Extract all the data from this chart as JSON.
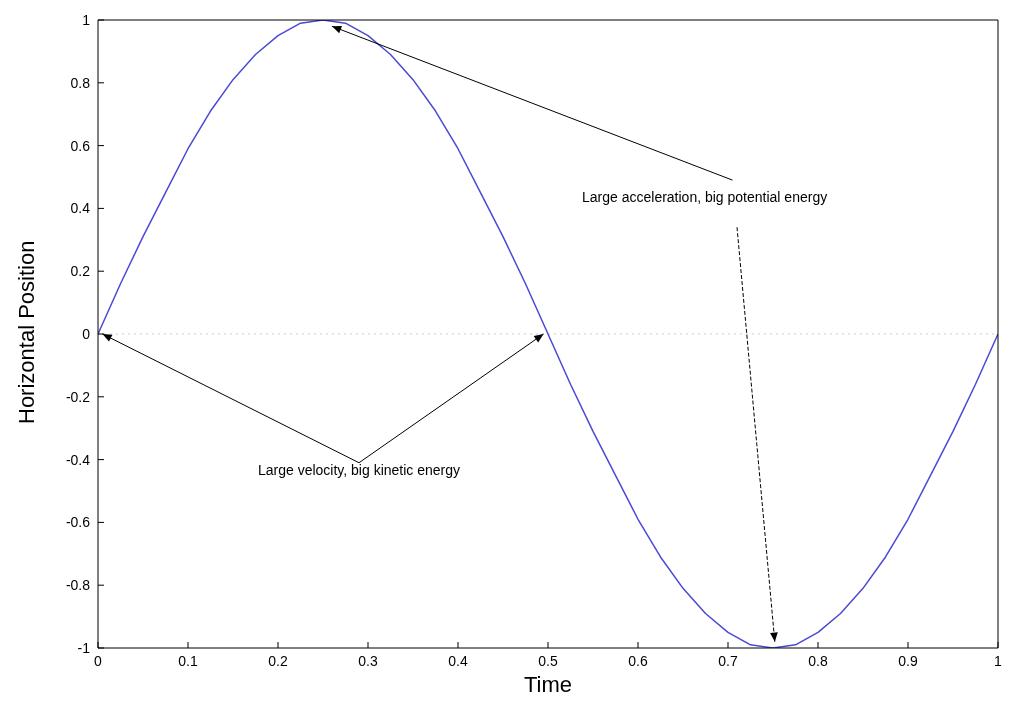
{
  "chart_data": {
    "type": "line",
    "xlabel": "Time",
    "ylabel": "Horizontal Position",
    "x": [
      0,
      0.025,
      0.05,
      0.075,
      0.1,
      0.125,
      0.15,
      0.175,
      0.2,
      0.225,
      0.25,
      0.275,
      0.3,
      0.325,
      0.35,
      0.375,
      0.4,
      0.425,
      0.45,
      0.475,
      0.5,
      0.525,
      0.55,
      0.575,
      0.6,
      0.625,
      0.65,
      0.675,
      0.7,
      0.725,
      0.75,
      0.775,
      0.8,
      0.825,
      0.85,
      0.875,
      0.9,
      0.925,
      0.95,
      0.975,
      1
    ],
    "series": [
      {
        "color": "#4a4ad4",
        "values": [
          0,
          0.16,
          0.31,
          0.45,
          0.59,
          0.71,
          0.81,
          0.89,
          0.95,
          0.99,
          1,
          0.99,
          0.95,
          0.89,
          0.81,
          0.71,
          0.59,
          0.45,
          0.31,
          0.16,
          0,
          -0.16,
          -0.31,
          -0.45,
          -0.59,
          -0.71,
          -0.81,
          -0.89,
          -0.95,
          -0.99,
          -1,
          -0.99,
          -0.95,
          -0.89,
          -0.81,
          -0.71,
          -0.59,
          -0.45,
          -0.31,
          -0.16,
          0
        ]
      }
    ],
    "xlim": [
      0,
      1
    ],
    "xticks": [
      0,
      0.1,
      0.2,
      0.3,
      0.4,
      0.5,
      0.6,
      0.7,
      0.8,
      0.9,
      1
    ],
    "ylim": [
      -1,
      1
    ],
    "yticks": [
      -1,
      -0.8,
      -0.6,
      -0.4,
      -0.2,
      0,
      0.2,
      0.4,
      0.6,
      0.8,
      1
    ],
    "grid": false,
    "legend": false,
    "marker": "none",
    "line_style": "solid",
    "ref_lines": [
      {
        "axis": "y",
        "value": 0,
        "color": "#cccccc",
        "line_style": "dotted"
      }
    ],
    "annotations": [
      {
        "text": "Large velocity, big kinetic energy",
        "x": 0.5,
        "y": 0
      },
      {
        "text": "Large acceleration, big potential energy",
        "x": 0.26,
        "y": 0.98
      }
    ]
  }
}
